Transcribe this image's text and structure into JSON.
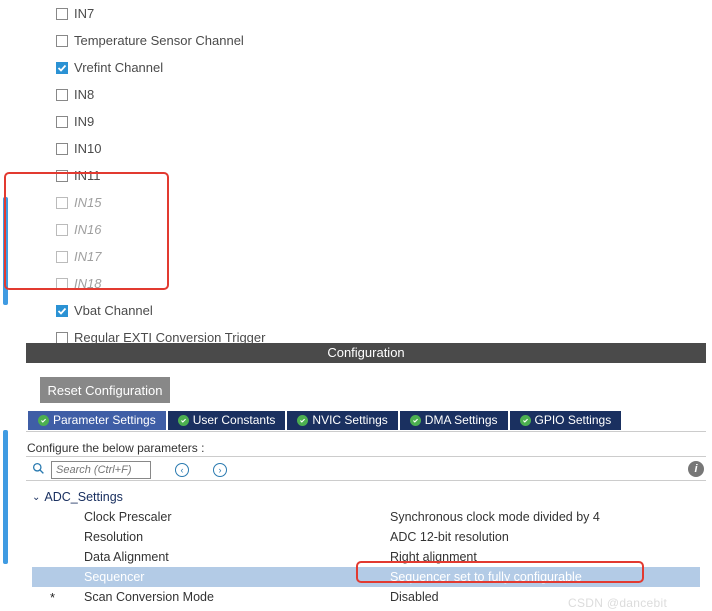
{
  "colors": {
    "accent_blue": "#2b92d4",
    "scroll_blue": "#3f9be2",
    "tab_active": "#3f5ea6",
    "tab_inactive": "#1a3060",
    "red_highlight": "#e23a30",
    "row_highlight": "#b3cbe6",
    "reset_btn_bg": "#888888"
  },
  "channels": [
    {
      "label": "IN7",
      "checked": false,
      "disabled": false
    },
    {
      "label": "Temperature Sensor Channel",
      "checked": false,
      "disabled": false
    },
    {
      "label": "Vrefint Channel",
      "checked": true,
      "disabled": false
    },
    {
      "label": "IN8",
      "checked": false,
      "disabled": false
    },
    {
      "label": "IN9",
      "checked": false,
      "disabled": false
    },
    {
      "label": "IN10",
      "checked": false,
      "disabled": false
    },
    {
      "label": "IN11",
      "checked": false,
      "disabled": false
    },
    {
      "label": "IN15",
      "checked": false,
      "disabled": true
    },
    {
      "label": "IN16",
      "checked": false,
      "disabled": true
    },
    {
      "label": "IN17",
      "checked": false,
      "disabled": true
    },
    {
      "label": "IN18",
      "checked": false,
      "disabled": true
    },
    {
      "label": "Vbat Channel",
      "checked": true,
      "disabled": false
    },
    {
      "label": "Regular EXTI Conversion Trigger",
      "checked": false,
      "disabled": false
    }
  ],
  "config_bar": "Configuration",
  "reset_button": "Reset Configuration",
  "tabs": [
    {
      "label": "Parameter Settings",
      "active": true
    },
    {
      "label": "User Constants",
      "active": false
    },
    {
      "label": "NVIC Settings",
      "active": false
    },
    {
      "label": "DMA Settings",
      "active": false
    },
    {
      "label": "GPIO Settings",
      "active": false
    }
  ],
  "params_label": "Configure the below parameters :",
  "search": {
    "placeholder": "Search (Ctrl+F)"
  },
  "tree": {
    "header": "ADC_Settings",
    "rows": [
      {
        "label": "Clock Prescaler",
        "value": "Synchronous clock mode divided by 4",
        "highlight": false,
        "star": false
      },
      {
        "label": "Resolution",
        "value": "ADC 12-bit resolution",
        "highlight": false,
        "star": false
      },
      {
        "label": "Data Alignment",
        "value": "Right alignment",
        "highlight": false,
        "star": false
      },
      {
        "label": "Sequencer",
        "value": "Sequencer set to fully configurable",
        "highlight": true,
        "star": false
      },
      {
        "label": "Scan Conversion Mode",
        "value": "Disabled",
        "highlight": false,
        "star": true
      }
    ]
  },
  "watermark": "CSDN @dancebit"
}
